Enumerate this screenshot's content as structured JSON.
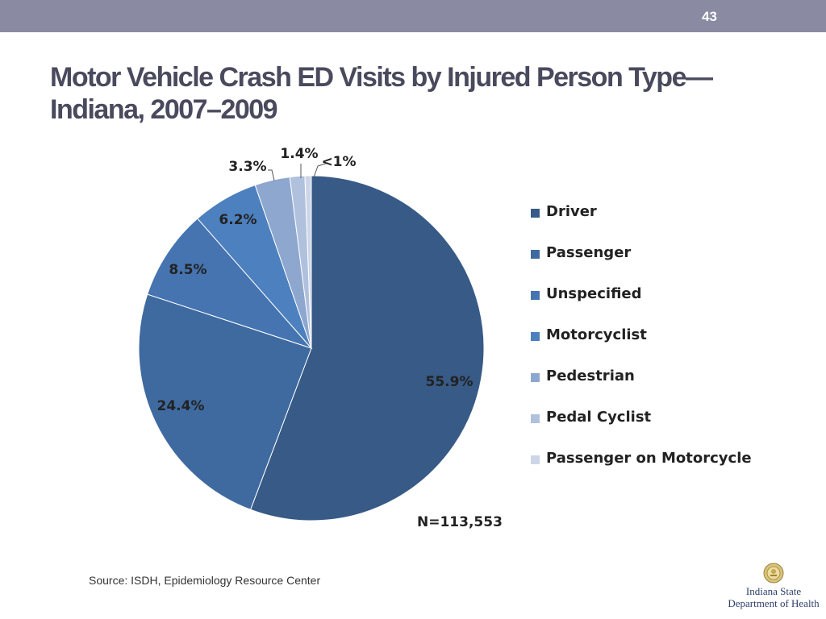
{
  "page_number": "43",
  "title": "Motor Vehicle Crash ED Visits by Injured Person Type—Indiana, 2007–2009",
  "chart_data": {
    "type": "pie",
    "slices": [
      {
        "category": "Driver",
        "value": 55.9,
        "label": "55.9%",
        "color": "#375a86"
      },
      {
        "category": "Passenger",
        "value": 24.4,
        "label": "24.4%",
        "color": "#3f6aa0"
      },
      {
        "category": "Unspecified",
        "value": 8.5,
        "label": "8.5%",
        "color": "#4574b0"
      },
      {
        "category": "Motorcyclist",
        "value": 6.2,
        "label": "6.2%",
        "color": "#4d80be"
      },
      {
        "category": "Pedestrian",
        "value": 3.3,
        "label": "3.3%",
        "color": "#8ea7cf"
      },
      {
        "category": "Pedal Cyclist",
        "value": 1.4,
        "label": "1.4%",
        "color": "#b0c1de"
      },
      {
        "category": "Passenger on Motorcycle",
        "value": 0.6,
        "label": "<1%",
        "color": "#cdd6e8"
      }
    ],
    "legend_position": "right",
    "note": "N=113,553"
  },
  "source": "Source: ISDH, Epidemiology Resource Center",
  "logo": {
    "line1": "Indiana State",
    "line2": "Department of Health"
  },
  "colors": {
    "topbar": "#8a8aa3",
    "title": "#4a4a5e"
  }
}
